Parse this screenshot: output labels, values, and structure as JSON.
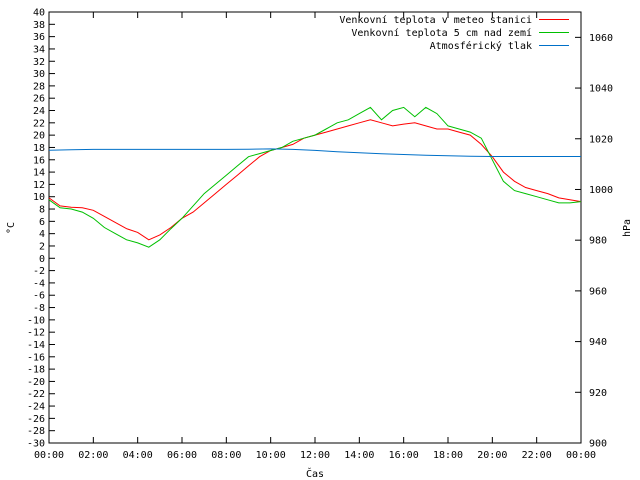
{
  "chart_data": {
    "type": "line",
    "title": "",
    "xlabel": "Čas",
    "ylabel_left": "°C",
    "ylabel_right": "hPa",
    "x_ticks": [
      "00:00",
      "02:00",
      "04:00",
      "06:00",
      "08:00",
      "10:00",
      "12:00",
      "14:00",
      "16:00",
      "18:00",
      "20:00",
      "22:00",
      "00:00"
    ],
    "xlim_hours": [
      0,
      24
    ],
    "ylim_left": [
      -30,
      40
    ],
    "ylim_right": [
      900,
      1070
    ],
    "y_left_ticks": [
      40,
      38,
      36,
      34,
      32,
      30,
      28,
      26,
      24,
      22,
      20,
      18,
      16,
      14,
      12,
      10,
      8,
      6,
      4,
      2,
      0,
      -2,
      -4,
      -6,
      -8,
      -10,
      -12,
      -14,
      -16,
      -18,
      -20,
      -22,
      -24,
      -26,
      -28,
      -30
    ],
    "y_right_ticks": [
      1060,
      1040,
      1020,
      1000,
      980,
      960,
      940,
      920,
      900
    ],
    "grid": false,
    "legend_position": "top-right",
    "series": [
      {
        "name": "Venkovní teplota v meteo stanici",
        "color": "#ff0000",
        "axis": "left",
        "x": [
          0,
          0.5,
          1,
          1.5,
          2,
          2.5,
          3,
          3.5,
          4,
          4.5,
          5,
          5.5,
          6,
          6.5,
          7,
          7.5,
          8,
          8.5,
          9,
          9.5,
          10,
          10.5,
          11,
          11.5,
          12,
          12.5,
          13,
          13.5,
          14,
          14.5,
          15,
          15.5,
          16,
          16.5,
          17,
          17.5,
          18,
          18.5,
          19,
          19.5,
          20,
          20.5,
          21,
          21.5,
          22,
          22.5,
          23,
          23.5,
          24
        ],
        "y": [
          9.8,
          8.5,
          8.3,
          8.2,
          7.8,
          6.8,
          5.8,
          4.8,
          4.2,
          3.0,
          3.8,
          5.0,
          6.5,
          7.5,
          9.0,
          10.5,
          12.0,
          13.5,
          15.0,
          16.5,
          17.5,
          18.0,
          18.5,
          19.5,
          20.0,
          20.5,
          21.0,
          21.5,
          22.0,
          22.5,
          22.0,
          21.5,
          21.8,
          22.0,
          21.5,
          21.0,
          21.0,
          20.5,
          20.0,
          18.5,
          16.5,
          14.0,
          12.5,
          11.5,
          11.0,
          10.5,
          9.8,
          9.5,
          9.2
        ]
      },
      {
        "name": "Venkovní teplota 5 cm nad zemí",
        "color": "#00c000",
        "axis": "left",
        "x": [
          0,
          0.5,
          1,
          1.5,
          2,
          2.5,
          3,
          3.5,
          4,
          4.5,
          5,
          5.5,
          6,
          6.5,
          7,
          7.5,
          8,
          8.5,
          9,
          9.5,
          10,
          10.5,
          11,
          11.5,
          12,
          12.5,
          13,
          13.5,
          14,
          14.5,
          15,
          15.5,
          16,
          16.5,
          17,
          17.5,
          18,
          18.5,
          19,
          19.5,
          20,
          20.5,
          21,
          21.5,
          22,
          22.5,
          23,
          23.5,
          24
        ],
        "y": [
          9.5,
          8.2,
          8.0,
          7.5,
          6.5,
          5.0,
          4.0,
          3.0,
          2.5,
          1.8,
          3.0,
          4.8,
          6.5,
          8.5,
          10.5,
          12.0,
          13.5,
          15.0,
          16.5,
          17.0,
          17.5,
          18.0,
          19.0,
          19.5,
          20.0,
          21.0,
          22.0,
          22.5,
          23.5,
          24.5,
          22.5,
          24.0,
          24.5,
          23.0,
          24.5,
          23.5,
          21.5,
          21.0,
          20.5,
          19.5,
          16.0,
          12.5,
          11.0,
          10.5,
          10.0,
          9.5,
          9.0,
          9.0,
          9.2
        ]
      },
      {
        "name": "Atmosférický tlak",
        "color": "#0070c8",
        "axis": "right",
        "x": [
          0,
          1,
          2,
          3,
          4,
          5,
          6,
          7,
          8,
          9,
          10,
          11,
          12,
          13,
          14,
          15,
          16,
          17,
          18,
          19,
          20,
          21,
          22,
          23,
          24
        ],
        "y": [
          1015.5,
          1015.7,
          1015.8,
          1015.8,
          1015.8,
          1015.8,
          1015.8,
          1015.8,
          1015.8,
          1015.9,
          1016.0,
          1015.8,
          1015.4,
          1014.9,
          1014.5,
          1014.1,
          1013.8,
          1013.5,
          1013.3,
          1013.1,
          1013.0,
          1013.0,
          1013.0,
          1013.0,
          1013.0
        ]
      }
    ]
  }
}
